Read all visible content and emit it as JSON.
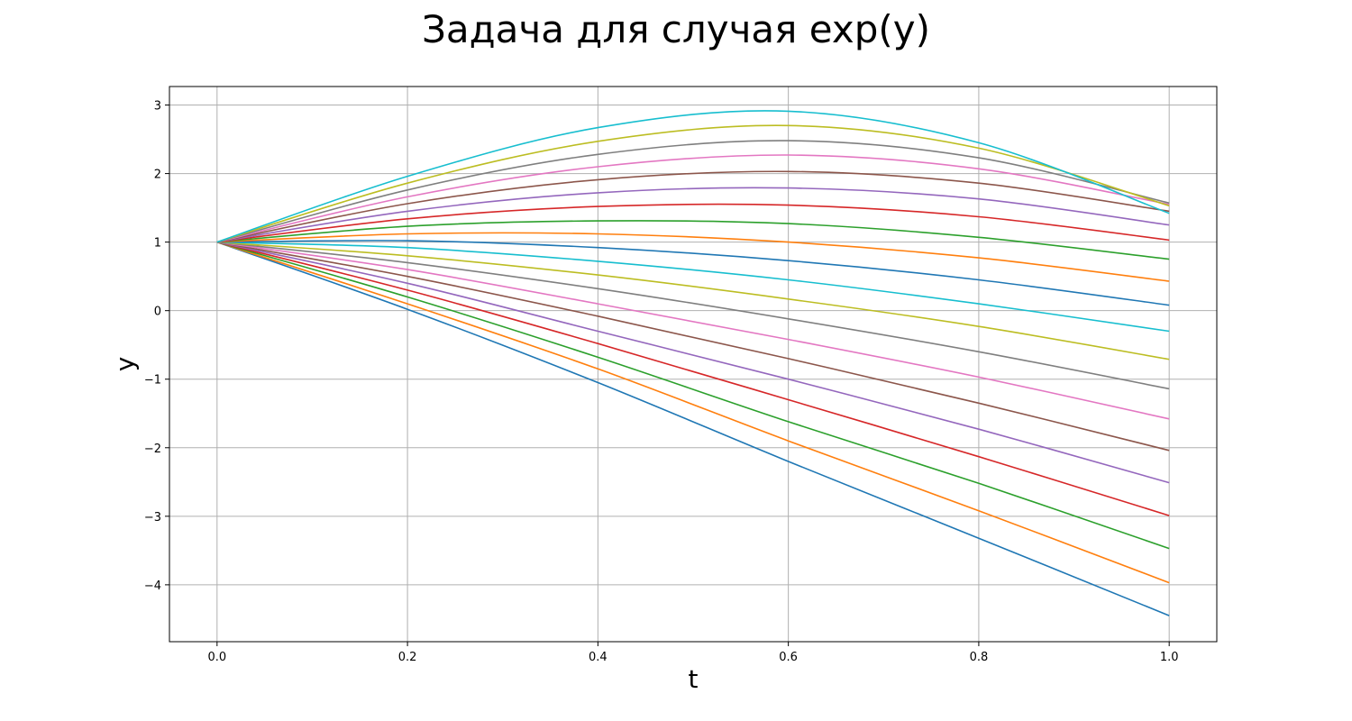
{
  "chart_data": {
    "type": "line",
    "title": "Задача для случая exp(y)",
    "xlabel": "t",
    "ylabel": "y",
    "xlim": [
      -0.05,
      1.05
    ],
    "ylim": [
      -4.83,
      3.27
    ],
    "grid": true,
    "x_ticks": [
      0.0,
      0.2,
      0.4,
      0.6,
      0.8,
      1.0
    ],
    "x_tick_labels": [
      "0.0",
      "0.2",
      "0.4",
      "0.6",
      "0.8",
      "1.0"
    ],
    "y_ticks": [
      -4,
      -3,
      -2,
      -1,
      0,
      1,
      2,
      3
    ],
    "y_tick_labels": [
      "−4",
      "−3",
      "−2",
      "−1",
      "0",
      "1",
      "2",
      "3"
    ],
    "x": [
      0.0,
      0.2,
      0.4,
      0.6,
      0.8,
      1.0
    ],
    "series": [
      {
        "color": "#1f77b4",
        "values": [
          1.0,
          0.02,
          -1.05,
          -2.2,
          -3.32,
          -4.45
        ]
      },
      {
        "color": "#ff7f0e",
        "values": [
          1.0,
          0.1,
          -0.85,
          -1.9,
          -2.92,
          -3.97
        ]
      },
      {
        "color": "#2ca02c",
        "values": [
          1.0,
          0.2,
          -0.68,
          -1.62,
          -2.52,
          -3.47
        ]
      },
      {
        "color": "#d62728",
        "values": [
          1.0,
          0.3,
          -0.48,
          -1.3,
          -2.13,
          -2.99
        ]
      },
      {
        "color": "#9467bd",
        "values": [
          1.0,
          0.4,
          -0.3,
          -1.0,
          -1.73,
          -2.51
        ]
      },
      {
        "color": "#8c564b",
        "values": [
          1.0,
          0.5,
          -0.08,
          -0.7,
          -1.35,
          -2.04
        ]
      },
      {
        "color": "#e377c2",
        "values": [
          1.0,
          0.6,
          0.1,
          -0.42,
          -0.97,
          -1.58
        ]
      },
      {
        "color": "#7f7f7f",
        "values": [
          1.0,
          0.7,
          0.32,
          -0.12,
          -0.6,
          -1.14
        ]
      },
      {
        "color": "#bcbd22",
        "values": [
          1.0,
          0.8,
          0.52,
          0.17,
          -0.23,
          -0.71
        ]
      },
      {
        "color": "#17becf",
        "values": [
          1.0,
          0.92,
          0.72,
          0.45,
          0.1,
          -0.3
        ]
      },
      {
        "color": "#1f77b4",
        "values": [
          1.0,
          1.02,
          0.92,
          0.73,
          0.45,
          0.08
        ]
      },
      {
        "color": "#ff7f0e",
        "values": [
          1.0,
          1.12,
          1.12,
          1.0,
          0.77,
          0.43
        ]
      },
      {
        "color": "#2ca02c",
        "values": [
          1.0,
          1.23,
          1.31,
          1.27,
          1.07,
          0.75
        ]
      },
      {
        "color": "#d62728",
        "values": [
          1.0,
          1.34,
          1.52,
          1.54,
          1.37,
          1.03
        ]
      },
      {
        "color": "#9467bd",
        "values": [
          1.0,
          1.45,
          1.72,
          1.79,
          1.63,
          1.25
        ]
      },
      {
        "color": "#8c564b",
        "values": [
          1.0,
          1.56,
          1.91,
          2.03,
          1.86,
          1.45
        ]
      },
      {
        "color": "#e377c2",
        "values": [
          1.0,
          1.66,
          2.1,
          2.27,
          2.07,
          1.55
        ]
      },
      {
        "color": "#7f7f7f",
        "values": [
          1.0,
          1.76,
          2.28,
          2.48,
          2.23,
          1.57
        ]
      },
      {
        "color": "#bcbd22",
        "values": [
          1.0,
          1.86,
          2.47,
          2.7,
          2.37,
          1.53
        ]
      },
      {
        "color": "#17becf",
        "values": [
          1.0,
          1.96,
          2.67,
          2.91,
          2.45,
          1.42
        ]
      }
    ]
  }
}
